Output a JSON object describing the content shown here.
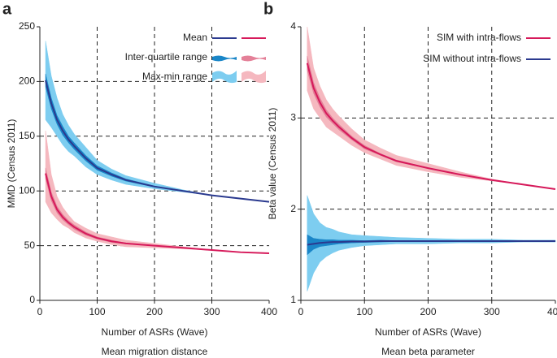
{
  "chart_data": [
    {
      "type": "line",
      "panel": "a",
      "subtitle": "Mean migration distance",
      "xlabel": "Number of ASRs (Wave)",
      "ylabel": "MMD (Census 2011)",
      "x": [
        10,
        20,
        30,
        40,
        50,
        60,
        80,
        100,
        125,
        150,
        200,
        250,
        300,
        350,
        400
      ],
      "xlim": [
        0,
        400
      ],
      "xticks": [
        0,
        100,
        200,
        300,
        400
      ],
      "ylim": [
        0,
        250
      ],
      "yticks": [
        0,
        50,
        100,
        150,
        200,
        250
      ],
      "grid": true,
      "legend_position": "upper right",
      "legend": [
        "Mean",
        "Inter-quartile range",
        "Max-min range"
      ],
      "series": [
        {
          "color": "#2b3a8f",
          "iqr_color": "#1a86c8",
          "range_color": "#7dcdf0",
          "values": [
            201,
            180,
            165,
            155,
            147,
            141,
            130,
            121,
            115,
            110,
            104,
            100,
            96,
            93,
            90
          ],
          "iqr_low": [
            195,
            175,
            161,
            151,
            144,
            138,
            127.5,
            119,
            113.5,
            109,
            103.5,
            99.7,
            96,
            93,
            90
          ],
          "iqr_high": [
            207,
            185,
            169,
            159,
            150,
            144,
            132.5,
            123,
            116.5,
            111,
            104.5,
            100.3,
            96,
            93,
            90
          ],
          "min": [
            165,
            158,
            150,
            142,
            136,
            132,
            122,
            115,
            110,
            106,
            102,
            99,
            96,
            93,
            90
          ],
          "max": [
            237,
            205,
            185,
            170,
            160,
            152,
            140,
            128,
            120,
            114,
            107,
            101,
            96,
            93,
            90
          ]
        },
        {
          "color": "#d6195a",
          "iqr_color": "#e48098",
          "range_color": "#f5b8bf",
          "values": [
            116,
            95,
            83,
            76,
            71,
            67,
            61,
            57,
            54,
            52,
            50,
            48,
            46,
            44,
            43
          ],
          "iqr_low": [
            111,
            91,
            80,
            73.5,
            69,
            65,
            59.5,
            56,
            53,
            51.5,
            49.7,
            48,
            46,
            44,
            43
          ],
          "iqr_high": [
            121,
            99,
            86,
            78.5,
            73,
            69,
            62.5,
            58,
            55,
            52.5,
            50.3,
            48,
            46,
            44,
            43
          ],
          "min": [
            90,
            80,
            74,
            69,
            66,
            62,
            57,
            54,
            51,
            49,
            48,
            47,
            46,
            44,
            43
          ],
          "max": [
            155,
            115,
            95,
            85,
            78,
            72,
            66,
            61,
            58,
            55,
            52,
            49,
            46,
            44,
            43
          ]
        }
      ]
    },
    {
      "type": "line",
      "panel": "b",
      "subtitle": "Mean beta parameter",
      "xlabel": "Number of ASRs (Wave)",
      "ylabel": "Beta value (Census 2011)",
      "x": [
        10,
        20,
        30,
        40,
        50,
        60,
        80,
        100,
        125,
        150,
        200,
        250,
        300,
        350,
        400
      ],
      "xlim": [
        0,
        400
      ],
      "xticks": [
        0,
        100,
        200,
        300,
        400
      ],
      "ylim": [
        1,
        4
      ],
      "yticks": [
        1,
        2,
        3,
        4
      ],
      "grid": true,
      "legend_position": "upper right",
      "series": [
        {
          "name": "SIM with intra-flows",
          "color": "#d6195a",
          "iqr_color": "#e48098",
          "range_color": "#f5b8bf",
          "values": [
            3.6,
            3.33,
            3.17,
            3.05,
            2.97,
            2.9,
            2.78,
            2.68,
            2.6,
            2.53,
            2.45,
            2.38,
            2.32,
            2.27,
            2.22
          ],
          "iqr_low": [
            3.52,
            3.27,
            3.12,
            3.01,
            2.94,
            2.87,
            2.76,
            2.66,
            2.59,
            2.52,
            2.445,
            2.38,
            2.32,
            2.27,
            2.22
          ],
          "iqr_high": [
            3.68,
            3.39,
            3.22,
            3.09,
            3.0,
            2.93,
            2.8,
            2.7,
            2.61,
            2.54,
            2.455,
            2.38,
            2.32,
            2.27,
            2.22
          ],
          "min": [
            3.3,
            3.1,
            3.0,
            2.9,
            2.85,
            2.8,
            2.7,
            2.62,
            2.55,
            2.48,
            2.41,
            2.35,
            2.31,
            2.27,
            2.22
          ],
          "max": [
            4.0,
            3.55,
            3.35,
            3.2,
            3.1,
            3.02,
            2.88,
            2.76,
            2.67,
            2.59,
            2.5,
            2.41,
            2.33,
            2.27,
            2.22
          ]
        },
        {
          "name": "SIM without intra-flows",
          "color": "#2b3a8f",
          "iqr_color": "#1a86c8",
          "range_color": "#7dcdf0",
          "values": [
            1.61,
            1.62,
            1.63,
            1.635,
            1.64,
            1.64,
            1.645,
            1.645,
            1.65,
            1.65,
            1.65,
            1.65,
            1.65,
            1.65,
            1.65
          ],
          "iqr_low": [
            1.5,
            1.56,
            1.59,
            1.6,
            1.61,
            1.62,
            1.63,
            1.635,
            1.64,
            1.645,
            1.645,
            1.645,
            1.645,
            1.648,
            1.648
          ],
          "iqr_high": [
            1.72,
            1.68,
            1.67,
            1.665,
            1.665,
            1.66,
            1.66,
            1.655,
            1.66,
            1.655,
            1.655,
            1.655,
            1.655,
            1.652,
            1.652
          ],
          "min": [
            1.1,
            1.3,
            1.42,
            1.48,
            1.52,
            1.55,
            1.58,
            1.6,
            1.61,
            1.62,
            1.62,
            1.63,
            1.63,
            1.64,
            1.64
          ],
          "max": [
            2.15,
            1.95,
            1.85,
            1.8,
            1.78,
            1.75,
            1.72,
            1.71,
            1.7,
            1.69,
            1.68,
            1.67,
            1.67,
            1.66,
            1.66
          ]
        }
      ]
    }
  ]
}
